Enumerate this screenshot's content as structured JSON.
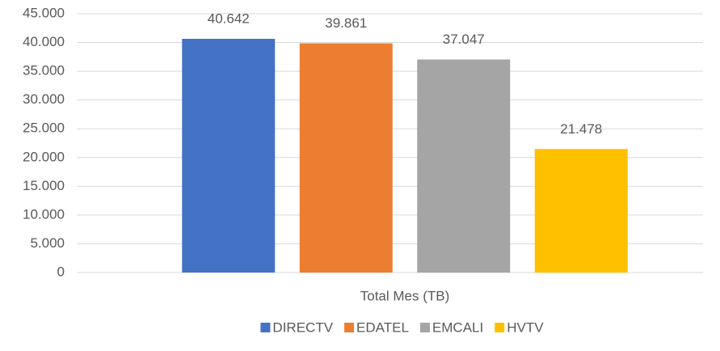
{
  "chart_data": {
    "type": "bar",
    "categories": [
      "Total Mes (TB)"
    ],
    "series": [
      {
        "name": "DIRECTV",
        "color": "#4472c4",
        "values": [
          40642
        ],
        "value_labels": [
          "40.642"
        ]
      },
      {
        "name": "EDATEL",
        "color": "#ed7d31",
        "values": [
          39861
        ],
        "value_labels": [
          "39.861"
        ]
      },
      {
        "name": "EMCALI",
        "color": "#a5a5a5",
        "values": [
          37047
        ],
        "value_labels": [
          "37.047"
        ]
      },
      {
        "name": "HVTV",
        "color": "#ffc000",
        "values": [
          21478
        ],
        "value_labels": [
          "21.478"
        ]
      }
    ],
    "ylim": [
      0,
      45000
    ],
    "yticks": [
      0,
      {
        "value": 5000,
        "label": "5.000"
      },
      {
        "value": 10000,
        "label": "10.000"
      },
      {
        "value": 15000,
        "label": "15.000"
      },
      {
        "value": 20000,
        "label": "20.000"
      },
      {
        "value": 25000,
        "label": "25.000"
      },
      {
        "value": 30000,
        "label": "30.000"
      },
      {
        "value": 35000,
        "label": "35.000"
      },
      {
        "value": 40000,
        "label": "40.000"
      },
      {
        "value": 45000,
        "label": "45.000"
      }
    ],
    "grid": true,
    "legend": "bottom"
  }
}
